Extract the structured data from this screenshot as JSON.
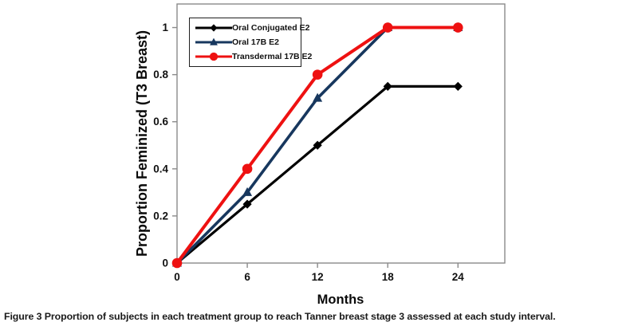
{
  "figure": {
    "y_axis_title": "Proportion Feminized (T3 Breast)",
    "x_axis_title": "Months"
  },
  "caption": {
    "label": "Figure 3",
    "text": "Proportion of subjects in each treatment group to reach Tanner breast stage 3 assessed at each study interval."
  },
  "chart_data": {
    "type": "line",
    "title": "",
    "xlabel": "Months",
    "ylabel": "Proportion Feminized (T3 Breast)",
    "x": [
      0,
      6,
      12,
      18,
      24
    ],
    "xlim": [
      0,
      28
    ],
    "ylim": [
      0,
      1.1
    ],
    "xticks": [
      0,
      6,
      12,
      18,
      24
    ],
    "xtick_labels": [
      "0",
      "6",
      "12",
      "18",
      "24"
    ],
    "yticks": [
      0,
      0.2,
      0.4,
      0.6,
      0.8,
      1
    ],
    "ytick_labels": [
      "0",
      "0.2",
      "0.4",
      "0.6",
      "0.8",
      "1"
    ],
    "grid": false,
    "legend_position": "top-left-inside",
    "axis_color": "#8a8a8a",
    "series": [
      {
        "name": "Oral Conjugated E2",
        "color": "#000000",
        "marker": "diamond",
        "line_width": 3.2,
        "values": [
          0,
          0.25,
          0.5,
          0.75,
          0.75
        ]
      },
      {
        "name": "Oral 17B E2",
        "color": "#17375e",
        "marker": "triangle",
        "line_width": 3.6,
        "values": [
          0,
          0.3,
          0.7,
          1,
          1
        ]
      },
      {
        "name": "Transdermal 17B E2",
        "color": "#ee1111",
        "marker": "circle",
        "line_width": 4,
        "values": [
          0,
          0.4,
          0.8,
          1,
          1
        ]
      }
    ]
  }
}
